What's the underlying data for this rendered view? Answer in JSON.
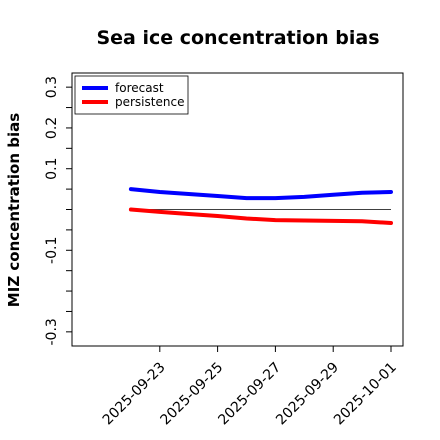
{
  "chart_data": {
    "type": "line",
    "title": "Sea ice concentration bias",
    "xlabel": "",
    "ylabel": "MIZ concentration bias",
    "x": [
      "2025-09-22",
      "2025-09-23",
      "2025-09-24",
      "2025-09-25",
      "2025-09-26",
      "2025-09-27",
      "2025-09-28",
      "2025-09-29",
      "2025-09-30",
      "2025-10-01"
    ],
    "xticks": [
      {
        "date": "2025-09-23",
        "label": "2025-09-23",
        "color": "#228B22"
      },
      {
        "date": "2025-09-25",
        "label": "2025-09-25",
        "color": "#000000"
      },
      {
        "date": "2025-09-27",
        "label": "2025-09-27",
        "color": "#000000"
      },
      {
        "date": "2025-09-29",
        "label": "2025-09-29",
        "color": "#000000"
      },
      {
        "date": "2025-10-01",
        "label": "2025-10-01",
        "color": "#000000"
      }
    ],
    "xlim": [
      "2025-09-21",
      "2025-10-01"
    ],
    "yticks": [
      {
        "value": 0.3,
        "label": "0.3"
      },
      {
        "value": 0.25,
        "label": ""
      },
      {
        "value": 0.2,
        "label": "0.2"
      },
      {
        "value": 0.15,
        "label": ""
      },
      {
        "value": 0.1,
        "label": "0.1"
      },
      {
        "value": 0.05,
        "label": ""
      },
      {
        "value": 0.0,
        "label": ""
      },
      {
        "value": -0.05,
        "label": ""
      },
      {
        "value": -0.1,
        "label": "-0.1"
      },
      {
        "value": -0.15,
        "label": ""
      },
      {
        "value": -0.2,
        "label": ""
      },
      {
        "value": -0.25,
        "label": ""
      },
      {
        "value": -0.3,
        "label": "-0.3"
      }
    ],
    "ylim": [
      -0.32,
      0.32
    ],
    "zero_line": true,
    "grid": false,
    "legend_position": "top-left",
    "series": [
      {
        "name": "forecast",
        "color": "#0000ff",
        "values": [
          0.05,
          0.043,
          0.038,
          0.033,
          0.028,
          0.028,
          0.031,
          0.036,
          0.041,
          0.043
        ]
      },
      {
        "name": "persistence",
        "color": "#ff0000",
        "values": [
          0.0,
          -0.006,
          -0.011,
          -0.016,
          -0.022,
          -0.026,
          -0.027,
          -0.028,
          -0.029,
          -0.033
        ]
      }
    ]
  }
}
